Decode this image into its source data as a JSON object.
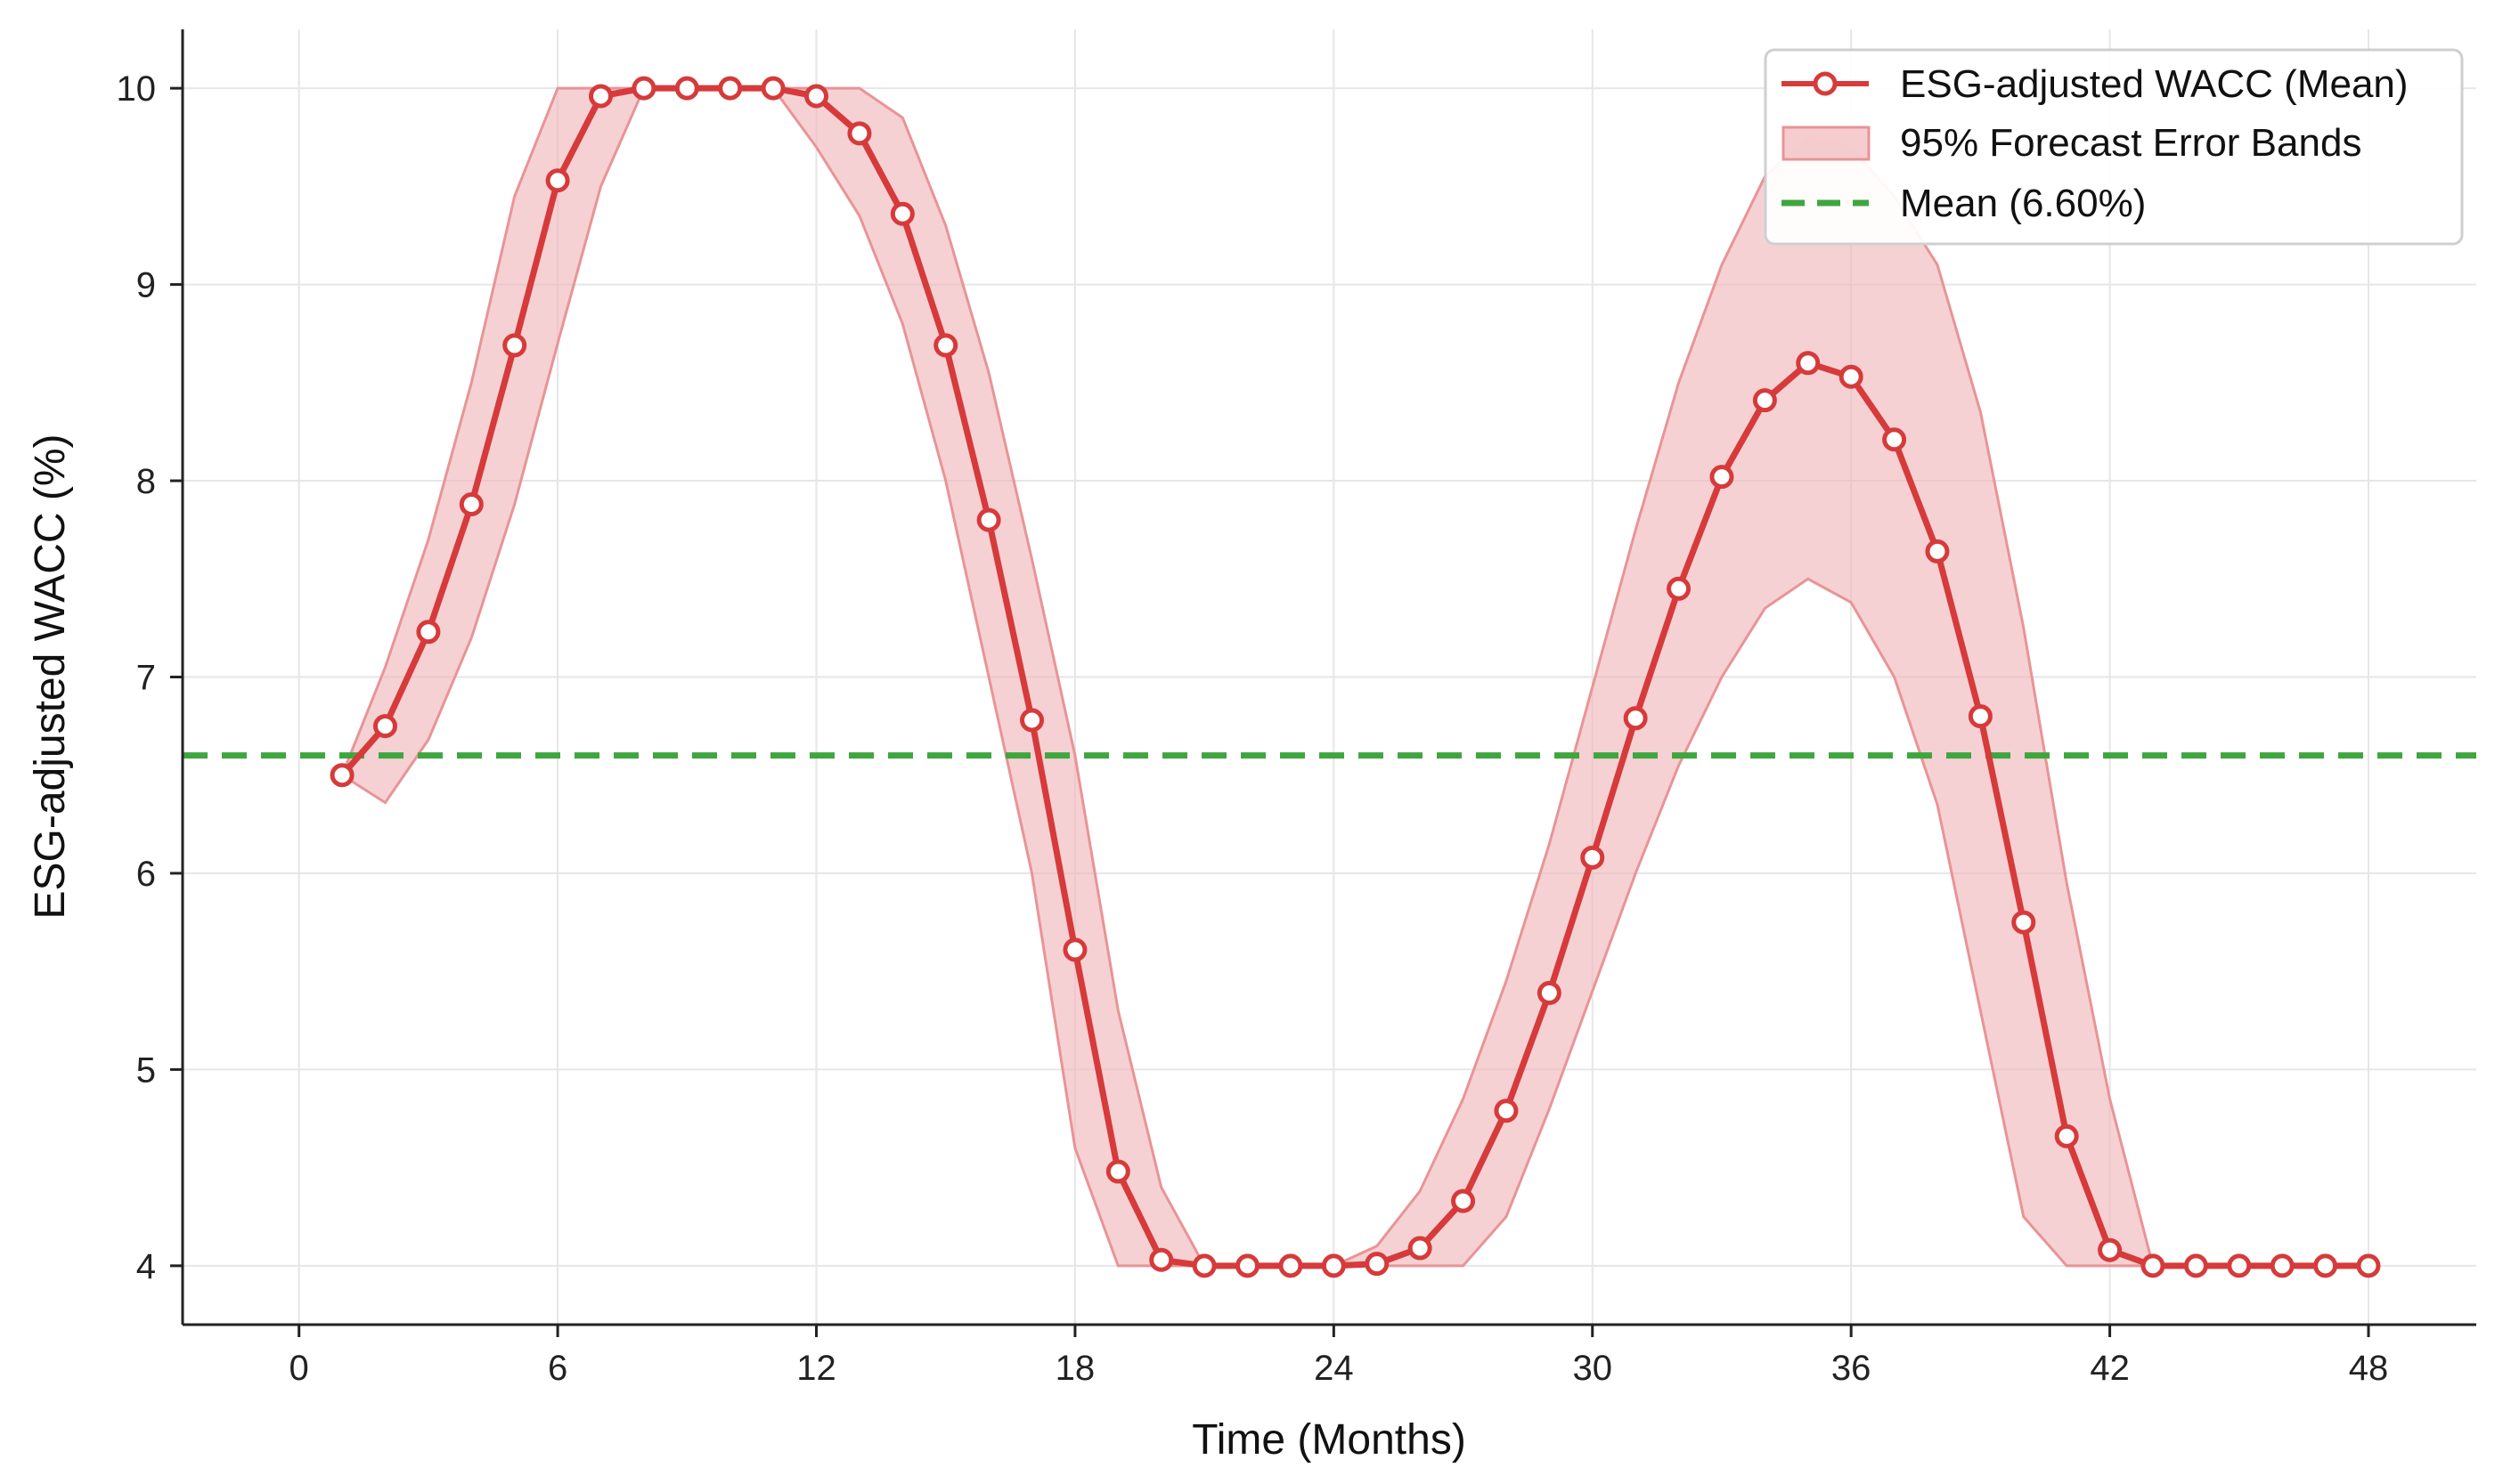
{
  "chart_data": {
    "type": "line",
    "title": "",
    "xlabel": "Time (Months)",
    "ylabel": "ESG-adjusted WACC (%)",
    "xlim": [
      -2.7,
      50.5
    ],
    "ylim": [
      3.7,
      10.3
    ],
    "xticks": [
      0,
      6,
      12,
      18,
      24,
      30,
      36,
      42,
      48
    ],
    "yticks": [
      4,
      5,
      6,
      7,
      8,
      9,
      10
    ],
    "grid": true,
    "legend_position": "top-right",
    "colors": {
      "series": "#d63a3a",
      "band_fill": "#f1b8bb",
      "band_edge": "#e89497",
      "mean_line": "#3fa63f",
      "axis": "#222222",
      "grid": "#e6e6e6"
    },
    "series": [
      {
        "name": "ESG-adjusted WACC (Mean)",
        "x": [
          1,
          2,
          3,
          4,
          5,
          6,
          7,
          8,
          9,
          10,
          11,
          12,
          13,
          14,
          15,
          16,
          17,
          18,
          19,
          20,
          21,
          22,
          23,
          24,
          25,
          26,
          27,
          28,
          29,
          30,
          31,
          32,
          33,
          34,
          35,
          36,
          37,
          38,
          39,
          40,
          41,
          42,
          43,
          44,
          45,
          46,
          47,
          48
        ],
        "values": [
          6.5,
          6.75,
          7.23,
          7.88,
          8.69,
          9.53,
          9.96,
          10.0,
          10.0,
          10.0,
          10.0,
          9.96,
          9.77,
          9.36,
          8.69,
          7.8,
          6.78,
          5.61,
          4.48,
          4.03,
          4.0,
          4.0,
          4.0,
          4.0,
          4.01,
          4.09,
          4.33,
          4.79,
          5.39,
          6.08,
          6.79,
          7.45,
          8.02,
          8.41,
          8.6,
          8.53,
          8.21,
          7.64,
          6.8,
          5.75,
          4.66,
          4.08,
          4.0,
          4.0,
          4.0,
          4.0,
          4.0,
          4.0
        ]
      },
      {
        "name": "95% Forecast Error Bands",
        "x": [
          1,
          2,
          3,
          4,
          5,
          6,
          7,
          8,
          9,
          10,
          11,
          12,
          13,
          14,
          15,
          16,
          17,
          18,
          19,
          20,
          21,
          22,
          23,
          24,
          25,
          26,
          27,
          28,
          29,
          30,
          31,
          32,
          33,
          34,
          35,
          36,
          37,
          38,
          39,
          40,
          41,
          42,
          43,
          44,
          45,
          46,
          47,
          48
        ],
        "lower": [
          6.5,
          6.36,
          6.68,
          7.2,
          7.88,
          8.7,
          9.5,
          10.0,
          10.0,
          10.0,
          10.0,
          9.7,
          9.35,
          8.8,
          8.0,
          7.0,
          6.0,
          4.6,
          4.0,
          4.0,
          4.0,
          4.0,
          4.0,
          4.0,
          4.0,
          4.0,
          4.0,
          4.25,
          4.8,
          5.4,
          6.0,
          6.55,
          7.0,
          7.35,
          7.5,
          7.38,
          7.0,
          6.35,
          5.3,
          4.25,
          4.0,
          4.0,
          4.0,
          4.0,
          4.0,
          4.0,
          4.0,
          4.0
        ],
        "upper": [
          6.5,
          7.05,
          7.7,
          8.5,
          9.45,
          10.0,
          10.0,
          10.0,
          10.0,
          10.0,
          10.0,
          10.0,
          10.0,
          9.85,
          9.3,
          8.55,
          7.6,
          6.6,
          5.3,
          4.4,
          4.0,
          4.0,
          4.0,
          4.0,
          4.1,
          4.38,
          4.85,
          5.45,
          6.15,
          6.95,
          7.75,
          8.5,
          9.1,
          9.55,
          9.75,
          9.7,
          9.45,
          9.1,
          8.35,
          7.25,
          5.95,
          4.85,
          4.0,
          4.0,
          4.0,
          4.0,
          4.0,
          4.0
        ]
      },
      {
        "name": "Mean (6.60%)",
        "value": 6.6
      }
    ]
  }
}
